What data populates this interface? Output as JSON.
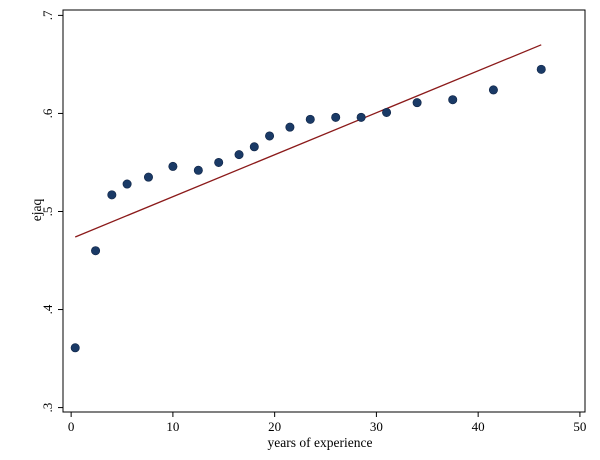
{
  "chart_data": {
    "type": "scatter",
    "xlabel": "years of experience",
    "ylabel": "ejaq",
    "xlim": [
      -0.8,
      50.5
    ],
    "ylim": [
      0.2955,
      0.7055
    ],
    "xticks": [
      0,
      10,
      20,
      30,
      40,
      50
    ],
    "xtick_labels": [
      "0",
      "10",
      "20",
      "30",
      "40",
      "50"
    ],
    "yticks": [
      0.3,
      0.4,
      0.5,
      0.6,
      0.7
    ],
    "ytick_labels": [
      ".3",
      ".4",
      ".5",
      ".6",
      ".7"
    ],
    "grid": false,
    "legend": "none",
    "series": [
      {
        "type": "scatter",
        "color": "#1a3a66",
        "x": [
          0.4,
          2.4,
          4.0,
          5.5,
          7.6,
          10.0,
          12.5,
          14.5,
          16.5,
          18.0,
          19.5,
          21.5,
          23.5,
          26.0,
          28.5,
          31.0,
          34.0,
          37.5,
          41.5,
          46.2
        ],
        "y": [
          0.361,
          0.46,
          0.517,
          0.528,
          0.535,
          0.546,
          0.542,
          0.55,
          0.558,
          0.566,
          0.577,
          0.586,
          0.594,
          0.596,
          0.596,
          0.601,
          0.611,
          0.614,
          0.624,
          0.645
        ]
      },
      {
        "type": "line",
        "color": "#8b1a1a",
        "x": [
          0.4,
          46.2
        ],
        "y": [
          0.474,
          0.67
        ]
      }
    ]
  }
}
